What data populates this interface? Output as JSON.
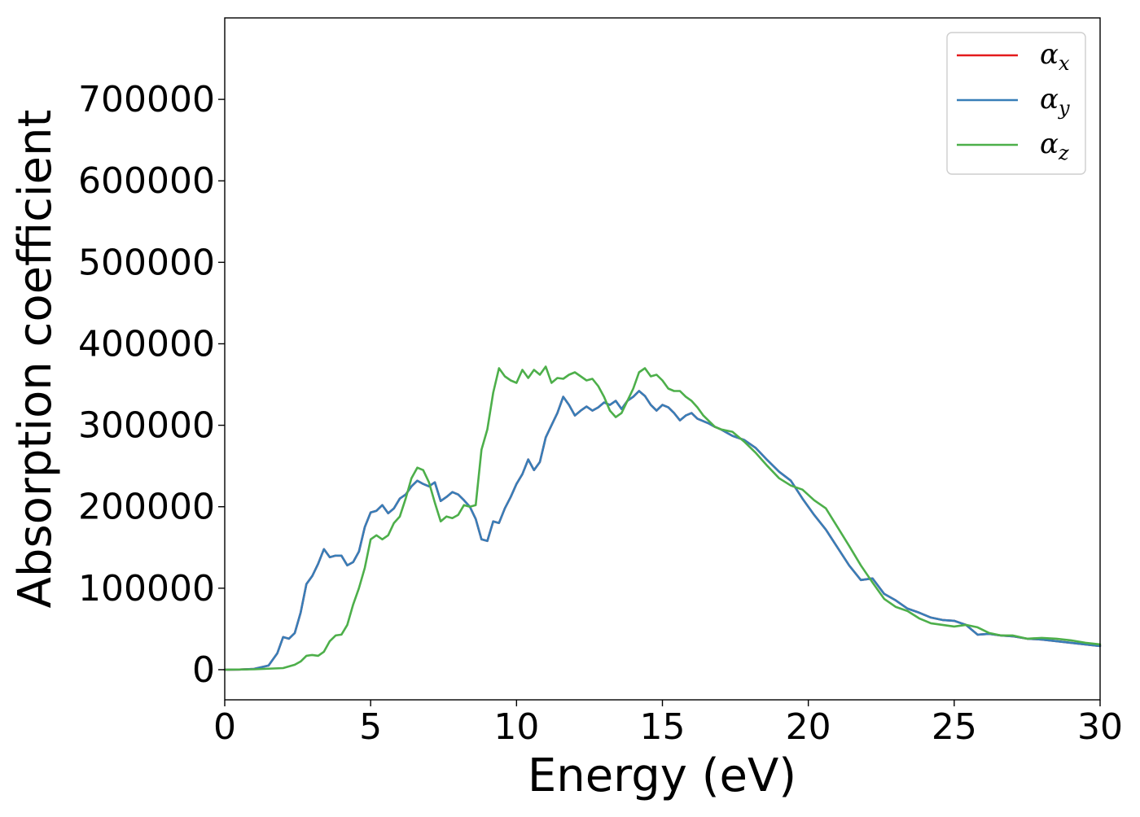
{
  "chart_data": {
    "type": "line",
    "title": "",
    "xlabel": "Energy (eV)",
    "ylabel": "Absorption coefficient",
    "xlim": [
      0,
      30
    ],
    "ylim": [
      -37000,
      800000
    ],
    "x_ticks": [
      0,
      5,
      10,
      15,
      20,
      25,
      30
    ],
    "x_tick_labels": [
      "0",
      "5",
      "10",
      "15",
      "20",
      "25",
      "30"
    ],
    "y_ticks": [
      0,
      100000,
      200000,
      300000,
      400000,
      500000,
      600000,
      700000
    ],
    "y_tick_labels": [
      "0",
      "100000",
      "200000",
      "300000",
      "400000",
      "500000",
      "600000",
      "700000"
    ],
    "grid": false,
    "legend": {
      "placement": "top-right",
      "entries": [
        {
          "base": "α",
          "sub": "x",
          "color": "#e41a1c"
        },
        {
          "base": "α",
          "sub": "y",
          "color": "#377eb8"
        },
        {
          "base": "α",
          "sub": "z",
          "color": "#4daf4a"
        }
      ]
    },
    "series": [
      {
        "name": "αx",
        "color": "#e41a1c",
        "x": [
          0,
          0.5,
          1.0,
          1.5,
          1.8,
          2.0,
          2.2,
          2.4,
          2.6,
          2.8,
          3.0,
          3.2,
          3.4,
          3.6,
          3.8,
          4.0,
          4.2,
          4.4,
          4.6,
          4.8,
          5.0,
          5.2,
          5.4,
          5.6,
          5.8,
          6.0,
          6.2,
          6.4,
          6.6,
          6.8,
          7.0,
          7.2,
          7.4,
          7.6,
          7.8,
          8.0,
          8.2,
          8.4,
          8.6,
          8.8,
          9.0,
          9.2,
          9.4,
          9.6,
          9.8,
          10.0,
          10.2,
          10.4,
          10.6,
          10.8,
          11.0,
          11.2,
          11.4,
          11.6,
          11.8,
          12.0,
          12.2,
          12.4,
          12.6,
          12.8,
          13.0,
          13.2,
          13.4,
          13.6,
          13.8,
          14.0,
          14.2,
          14.4,
          14.6,
          14.8,
          15.0,
          15.2,
          15.4,
          15.6,
          15.8,
          16.0,
          16.2,
          16.4,
          16.6,
          16.8,
          17.0,
          17.4,
          17.8,
          18.2,
          18.6,
          19.0,
          19.4,
          19.8,
          20.2,
          20.6,
          21.0,
          21.4,
          21.8,
          22.2,
          22.6,
          23.0,
          23.4,
          23.8,
          24.2,
          24.6,
          25.0,
          25.4,
          25.8,
          26.2,
          26.6,
          27.0,
          27.5,
          28.0,
          28.5,
          29.0,
          29.5,
          30.0
        ],
        "y": [
          0,
          200,
          1000,
          5000,
          20000,
          40000,
          38000,
          45000,
          70000,
          105000,
          115000,
          130000,
          148000,
          138000,
          140000,
          140000,
          128000,
          132000,
          145000,
          175000,
          193000,
          195000,
          202000,
          192000,
          198000,
          210000,
          215000,
          225000,
          232000,
          228000,
          225000,
          230000,
          207000,
          212000,
          218000,
          215000,
          208000,
          200000,
          185000,
          160000,
          158000,
          182000,
          180000,
          198000,
          212000,
          228000,
          240000,
          258000,
          245000,
          255000,
          285000,
          300000,
          315000,
          335000,
          325000,
          312000,
          318000,
          323000,
          318000,
          322000,
          328000,
          325000,
          330000,
          320000,
          330000,
          335000,
          342000,
          336000,
          325000,
          318000,
          325000,
          322000,
          315000,
          306000,
          312000,
          315000,
          308000,
          305000,
          302000,
          298000,
          295000,
          287000,
          282000,
          272000,
          257000,
          243000,
          232000,
          210000,
          190000,
          172000,
          150000,
          128000,
          110000,
          112000,
          93000,
          85000,
          75000,
          70000,
          64000,
          61000,
          60000,
          55000,
          43000,
          44000,
          42000,
          41000,
          38000,
          37000,
          35000,
          33000,
          31000,
          29000
        ]
      },
      {
        "name": "αy",
        "color": "#377eb8",
        "x": [
          0,
          0.5,
          1.0,
          1.5,
          1.8,
          2.0,
          2.2,
          2.4,
          2.6,
          2.8,
          3.0,
          3.2,
          3.4,
          3.6,
          3.8,
          4.0,
          4.2,
          4.4,
          4.6,
          4.8,
          5.0,
          5.2,
          5.4,
          5.6,
          5.8,
          6.0,
          6.2,
          6.4,
          6.6,
          6.8,
          7.0,
          7.2,
          7.4,
          7.6,
          7.8,
          8.0,
          8.2,
          8.4,
          8.6,
          8.8,
          9.0,
          9.2,
          9.4,
          9.6,
          9.8,
          10.0,
          10.2,
          10.4,
          10.6,
          10.8,
          11.0,
          11.2,
          11.4,
          11.6,
          11.8,
          12.0,
          12.2,
          12.4,
          12.6,
          12.8,
          13.0,
          13.2,
          13.4,
          13.6,
          13.8,
          14.0,
          14.2,
          14.4,
          14.6,
          14.8,
          15.0,
          15.2,
          15.4,
          15.6,
          15.8,
          16.0,
          16.2,
          16.4,
          16.6,
          16.8,
          17.0,
          17.4,
          17.8,
          18.2,
          18.6,
          19.0,
          19.4,
          19.8,
          20.2,
          20.6,
          21.0,
          21.4,
          21.8,
          22.2,
          22.6,
          23.0,
          23.4,
          23.8,
          24.2,
          24.6,
          25.0,
          25.4,
          25.8,
          26.2,
          26.6,
          27.0,
          27.5,
          28.0,
          28.5,
          29.0,
          29.5,
          30.0
        ],
        "y": [
          0,
          200,
          1000,
          5000,
          20000,
          40000,
          38000,
          45000,
          70000,
          105000,
          115000,
          130000,
          148000,
          138000,
          140000,
          140000,
          128000,
          132000,
          145000,
          175000,
          193000,
          195000,
          202000,
          192000,
          198000,
          210000,
          215000,
          225000,
          232000,
          228000,
          225000,
          230000,
          207000,
          212000,
          218000,
          215000,
          208000,
          200000,
          185000,
          160000,
          158000,
          182000,
          180000,
          198000,
          212000,
          228000,
          240000,
          258000,
          245000,
          255000,
          285000,
          300000,
          315000,
          335000,
          325000,
          312000,
          318000,
          323000,
          318000,
          322000,
          328000,
          325000,
          330000,
          320000,
          330000,
          335000,
          342000,
          336000,
          325000,
          318000,
          325000,
          322000,
          315000,
          306000,
          312000,
          315000,
          308000,
          305000,
          302000,
          298000,
          295000,
          287000,
          282000,
          272000,
          257000,
          243000,
          232000,
          210000,
          190000,
          172000,
          150000,
          128000,
          110000,
          112000,
          93000,
          85000,
          75000,
          70000,
          64000,
          61000,
          60000,
          55000,
          43000,
          44000,
          42000,
          41000,
          38000,
          37000,
          35000,
          33000,
          31000,
          29000
        ]
      },
      {
        "name": "αz",
        "color": "#4daf4a",
        "x": [
          0,
          1.0,
          2.0,
          2.4,
          2.6,
          2.8,
          3.0,
          3.2,
          3.4,
          3.6,
          3.8,
          4.0,
          4.2,
          4.4,
          4.6,
          4.8,
          5.0,
          5.2,
          5.4,
          5.6,
          5.8,
          6.0,
          6.2,
          6.4,
          6.6,
          6.8,
          7.0,
          7.2,
          7.4,
          7.6,
          7.8,
          8.0,
          8.2,
          8.4,
          8.6,
          8.8,
          9.0,
          9.2,
          9.4,
          9.6,
          9.8,
          10.0,
          10.2,
          10.4,
          10.6,
          10.8,
          11.0,
          11.2,
          11.4,
          11.6,
          11.8,
          12.0,
          12.2,
          12.4,
          12.6,
          12.8,
          13.0,
          13.2,
          13.4,
          13.6,
          13.8,
          14.0,
          14.2,
          14.4,
          14.6,
          14.8,
          15.0,
          15.2,
          15.4,
          15.6,
          15.8,
          16.0,
          16.2,
          16.4,
          16.6,
          16.8,
          17.0,
          17.4,
          17.8,
          18.2,
          18.6,
          19.0,
          19.4,
          19.8,
          20.2,
          20.6,
          21.0,
          21.4,
          21.8,
          22.2,
          22.6,
          23.0,
          23.4,
          23.8,
          24.2,
          24.6,
          25.0,
          25.4,
          25.8,
          26.2,
          26.6,
          27.0,
          27.5,
          28.0,
          28.5,
          29.0,
          29.5,
          30.0
        ],
        "y": [
          0,
          500,
          2000,
          6000,
          10000,
          17000,
          18000,
          17000,
          22000,
          35000,
          42000,
          43000,
          55000,
          80000,
          100000,
          125000,
          160000,
          165000,
          160000,
          165000,
          180000,
          188000,
          210000,
          235000,
          248000,
          245000,
          230000,
          205000,
          182000,
          188000,
          186000,
          190000,
          202000,
          200000,
          202000,
          270000,
          295000,
          340000,
          370000,
          360000,
          355000,
          352000,
          368000,
          358000,
          368000,
          362000,
          372000,
          352000,
          358000,
          357000,
          362000,
          365000,
          360000,
          355000,
          357000,
          348000,
          335000,
          318000,
          310000,
          315000,
          330000,
          345000,
          365000,
          370000,
          360000,
          362000,
          355000,
          345000,
          342000,
          342000,
          335000,
          330000,
          322000,
          312000,
          305000,
          298000,
          295000,
          292000,
          280000,
          266000,
          250000,
          235000,
          226000,
          221000,
          208000,
          198000,
          175000,
          152000,
          128000,
          107000,
          87000,
          77000,
          72000,
          63000,
          57000,
          55000,
          53000,
          55000,
          52000,
          45000,
          42000,
          42000,
          38000,
          39000,
          38000,
          36000,
          33000,
          31000
        ]
      }
    ]
  }
}
